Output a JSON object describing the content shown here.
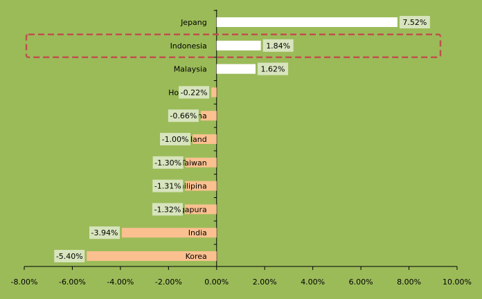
{
  "chart_data": {
    "type": "bar",
    "orientation": "horizontal",
    "title": "",
    "xlabel": "",
    "ylabel": "",
    "categories": [
      "Jepang",
      "Indonesia",
      "Malaysia",
      "Hongkong",
      "China",
      "Thailand",
      "Taiwan",
      "Philipina",
      "Singapura",
      "India",
      "Korea"
    ],
    "values": [
      7.52,
      1.84,
      1.62,
      -0.22,
      -0.66,
      -1.0,
      -1.3,
      -1.31,
      -1.32,
      -3.94,
      -5.4
    ],
    "data_labels": [
      "7.52%",
      "1.84%",
      "1.62%",
      "-0.22%",
      "-0.66%",
      "-1.00%",
      "-1.30%",
      "-1.31%",
      "-1.32%",
      "-3.94%",
      "-5.40%"
    ],
    "xlim": [
      -8,
      10
    ],
    "x_ticks": [
      -8,
      -6,
      -4,
      -2,
      0,
      2,
      4,
      6,
      8,
      10
    ],
    "x_tick_labels": [
      "-8.00%",
      "-6.00%",
      "-4.00%",
      "-2.00%",
      "0.00%",
      "2.00%",
      "4.00%",
      "6.00%",
      "8.00%",
      "10.00%"
    ],
    "grid": false,
    "legend": "none",
    "highlighted_category": "Indonesia",
    "colors": {
      "background": "#9bbb59",
      "positive_bar": "#ffffff",
      "negative_bar": "#fac090",
      "data_label_bg": "#d7e4bd",
      "highlight_border": "#c0504d",
      "axis": "#000000"
    }
  }
}
